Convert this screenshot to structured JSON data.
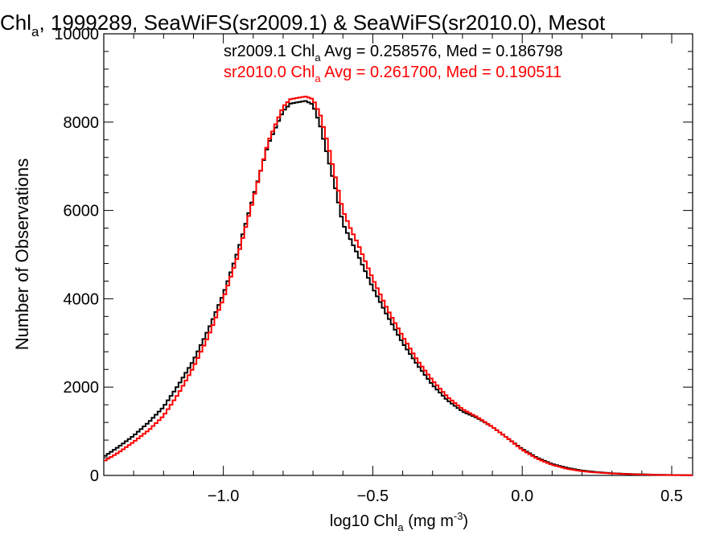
{
  "chart_data": {
    "type": "line",
    "title": {
      "prefix": "Chl",
      "sub": "a",
      "rest": ", 1999289, SeaWiFS(sr2009.1) & SeaWiFS(sr2010.0), Mesot"
    },
    "xlabel": {
      "prefix": "log10 Chl",
      "sub": "a",
      "unit_open": " (mg m",
      "sup": "-3",
      "unit_close": ")"
    },
    "ylabel": "Number of Observations",
    "xlim": [
      -1.4,
      0.57
    ],
    "ylim": [
      0,
      10000
    ],
    "x_ticks": [
      {
        "value": -1.0,
        "label": "−1.0"
      },
      {
        "value": -0.5,
        "label": "−0.5"
      },
      {
        "value": 0.0,
        "label": "0.0"
      },
      {
        "value": 0.5,
        "label": "0.5"
      }
    ],
    "y_ticks": [
      {
        "value": 0,
        "label": "0"
      },
      {
        "value": 2000,
        "label": "2000"
      },
      {
        "value": 4000,
        "label": "4000"
      },
      {
        "value": 6000,
        "label": "6000"
      },
      {
        "value": 8000,
        "label": "8000"
      },
      {
        "value": 10000,
        "label": "10000"
      }
    ],
    "grid": false,
    "legend": [
      {
        "prefix": "sr2009.1 Chl",
        "sub": "a",
        "rest": " Avg = 0.258576, Med = 0.186798",
        "color": "#000000"
      },
      {
        "prefix": "sr2010.0 Chl",
        "sub": "a",
        "rest": " Avg = 0.261700, Med = 0.190511",
        "color": "#ff0000"
      }
    ],
    "series": [
      {
        "color": "#000000",
        "x": [
          -1.4,
          -1.35,
          -1.3,
          -1.25,
          -1.2,
          -1.15,
          -1.1,
          -1.05,
          -1.0,
          -0.95,
          -0.9,
          -0.85,
          -0.8,
          -0.775,
          -0.75,
          -0.725,
          -0.7,
          -0.675,
          -0.65,
          -0.625,
          -0.6,
          -0.575,
          -0.55,
          -0.5,
          -0.45,
          -0.4,
          -0.35,
          -0.3,
          -0.25,
          -0.2,
          -0.15,
          -0.1,
          -0.05,
          0.0,
          0.05,
          0.1,
          0.15,
          0.2,
          0.25,
          0.3,
          0.35,
          0.4,
          0.45,
          0.5,
          0.57
        ],
        "y": [
          420,
          650,
          900,
          1200,
          1550,
          2050,
          2600,
          3300,
          4100,
          5100,
          6300,
          7500,
          8250,
          8420,
          8450,
          8480,
          8400,
          7900,
          7200,
          6500,
          5700,
          5350,
          5000,
          4250,
          3600,
          3000,
          2500,
          2050,
          1700,
          1450,
          1300,
          1100,
          850,
          600,
          400,
          260,
          170,
          110,
          75,
          50,
          35,
          25,
          15,
          10,
          5
        ]
      },
      {
        "color": "#ff0000",
        "x": [
          -1.4,
          -1.35,
          -1.3,
          -1.25,
          -1.2,
          -1.15,
          -1.1,
          -1.05,
          -1.0,
          -0.95,
          -0.9,
          -0.85,
          -0.8,
          -0.775,
          -0.75,
          -0.725,
          -0.7,
          -0.675,
          -0.65,
          -0.625,
          -0.6,
          -0.575,
          -0.55,
          -0.5,
          -0.45,
          -0.4,
          -0.35,
          -0.3,
          -0.25,
          -0.2,
          -0.15,
          -0.1,
          -0.05,
          0.0,
          0.05,
          0.1,
          0.15,
          0.2,
          0.25,
          0.3,
          0.35,
          0.4,
          0.45,
          0.5,
          0.57
        ],
        "y": [
          320,
          520,
          760,
          1020,
          1350,
          1850,
          2450,
          3150,
          4000,
          5000,
          6250,
          7550,
          8350,
          8520,
          8550,
          8580,
          8520,
          8150,
          7500,
          6750,
          6000,
          5600,
          5250,
          4450,
          3750,
          3150,
          2600,
          2150,
          1780,
          1500,
          1320,
          1100,
          850,
          580,
          380,
          240,
          150,
          95,
          65,
          45,
          30,
          20,
          12,
          8,
          4
        ]
      }
    ]
  }
}
